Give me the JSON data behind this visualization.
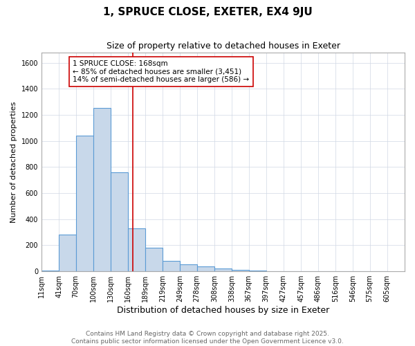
{
  "title": "1, SPRUCE CLOSE, EXETER, EX4 9JU",
  "subtitle": "Size of property relative to detached houses in Exeter",
  "xlabel": "Distribution of detached houses by size in Exeter",
  "ylabel": "Number of detached properties",
  "bar_left_edges": [
    11,
    41,
    70,
    100,
    130,
    160,
    189,
    219,
    249,
    278,
    308,
    338,
    367,
    397,
    427,
    457,
    486,
    516,
    546,
    575
  ],
  "bar_widths": [
    30,
    29,
    30,
    30,
    30,
    29,
    30,
    30,
    29,
    30,
    30,
    29,
    30,
    30,
    30,
    29,
    30,
    30,
    29,
    30
  ],
  "bar_heights": [
    5,
    280,
    1040,
    1255,
    760,
    330,
    180,
    80,
    55,
    35,
    20,
    10,
    5,
    2,
    1,
    1,
    1,
    1,
    1,
    1
  ],
  "bar_facecolor": "#c8d8ea",
  "bar_edgecolor": "#5b9bd5",
  "bar_linewidth": 0.8,
  "vline_x": 168,
  "vline_color": "#cc0000",
  "vline_linewidth": 1.2,
  "annotation_text": "1 SPRUCE CLOSE: 168sqm\n← 85% of detached houses are smaller (3,451)\n14% of semi-detached houses are larger (586) →",
  "annotation_fontsize": 7.5,
  "annotation_box_color": "white",
  "annotation_box_edgecolor": "#cc0000",
  "xlim": [
    11,
    635
  ],
  "ylim": [
    0,
    1680
  ],
  "yticks": [
    0,
    200,
    400,
    600,
    800,
    1000,
    1200,
    1400,
    1600
  ],
  "xtick_labels": [
    "11sqm",
    "41sqm",
    "70sqm",
    "100sqm",
    "130sqm",
    "160sqm",
    "189sqm",
    "219sqm",
    "249sqm",
    "278sqm",
    "308sqm",
    "338sqm",
    "367sqm",
    "397sqm",
    "427sqm",
    "457sqm",
    "486sqm",
    "516sqm",
    "546sqm",
    "575sqm",
    "605sqm"
  ],
  "xtick_positions": [
    11,
    41,
    70,
    100,
    130,
    160,
    189,
    219,
    249,
    278,
    308,
    338,
    367,
    397,
    427,
    457,
    486,
    516,
    546,
    575,
    605
  ],
  "title_fontsize": 11,
  "subtitle_fontsize": 9,
  "xlabel_fontsize": 9,
  "ylabel_fontsize": 8,
  "tick_fontsize": 7,
  "footer_text": "Contains HM Land Registry data © Crown copyright and database right 2025.\nContains public sector information licensed under the Open Government Licence v3.0.",
  "footer_fontsize": 6.5,
  "footer_color": "#666666",
  "grid_color": "#d0d8e4",
  "bg_color": "#ffffff"
}
